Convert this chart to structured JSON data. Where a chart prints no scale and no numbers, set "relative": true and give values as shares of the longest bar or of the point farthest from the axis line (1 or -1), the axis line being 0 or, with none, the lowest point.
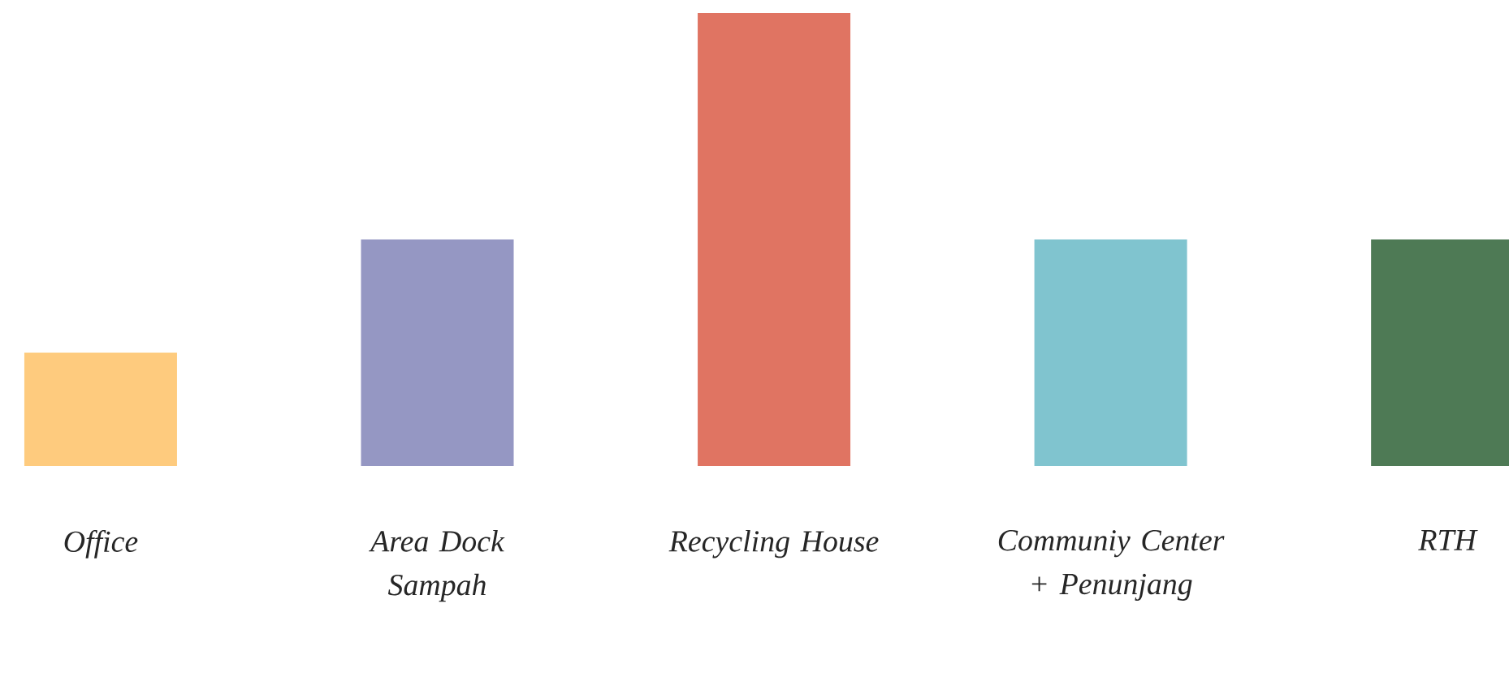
{
  "chart_data": {
    "type": "bar",
    "relative": true,
    "categories": [
      "Office",
      "Area Dock Sampah",
      "Recycling House",
      "Communiy Center + Penunjang",
      "RTH"
    ],
    "values": [
      0.25,
      0.5,
      1,
      0.5,
      0.5
    ],
    "colors": [
      "#fecb7e",
      "#9597c3",
      "#e07462",
      "#80c4cf",
      "#4e7a55"
    ]
  }
}
